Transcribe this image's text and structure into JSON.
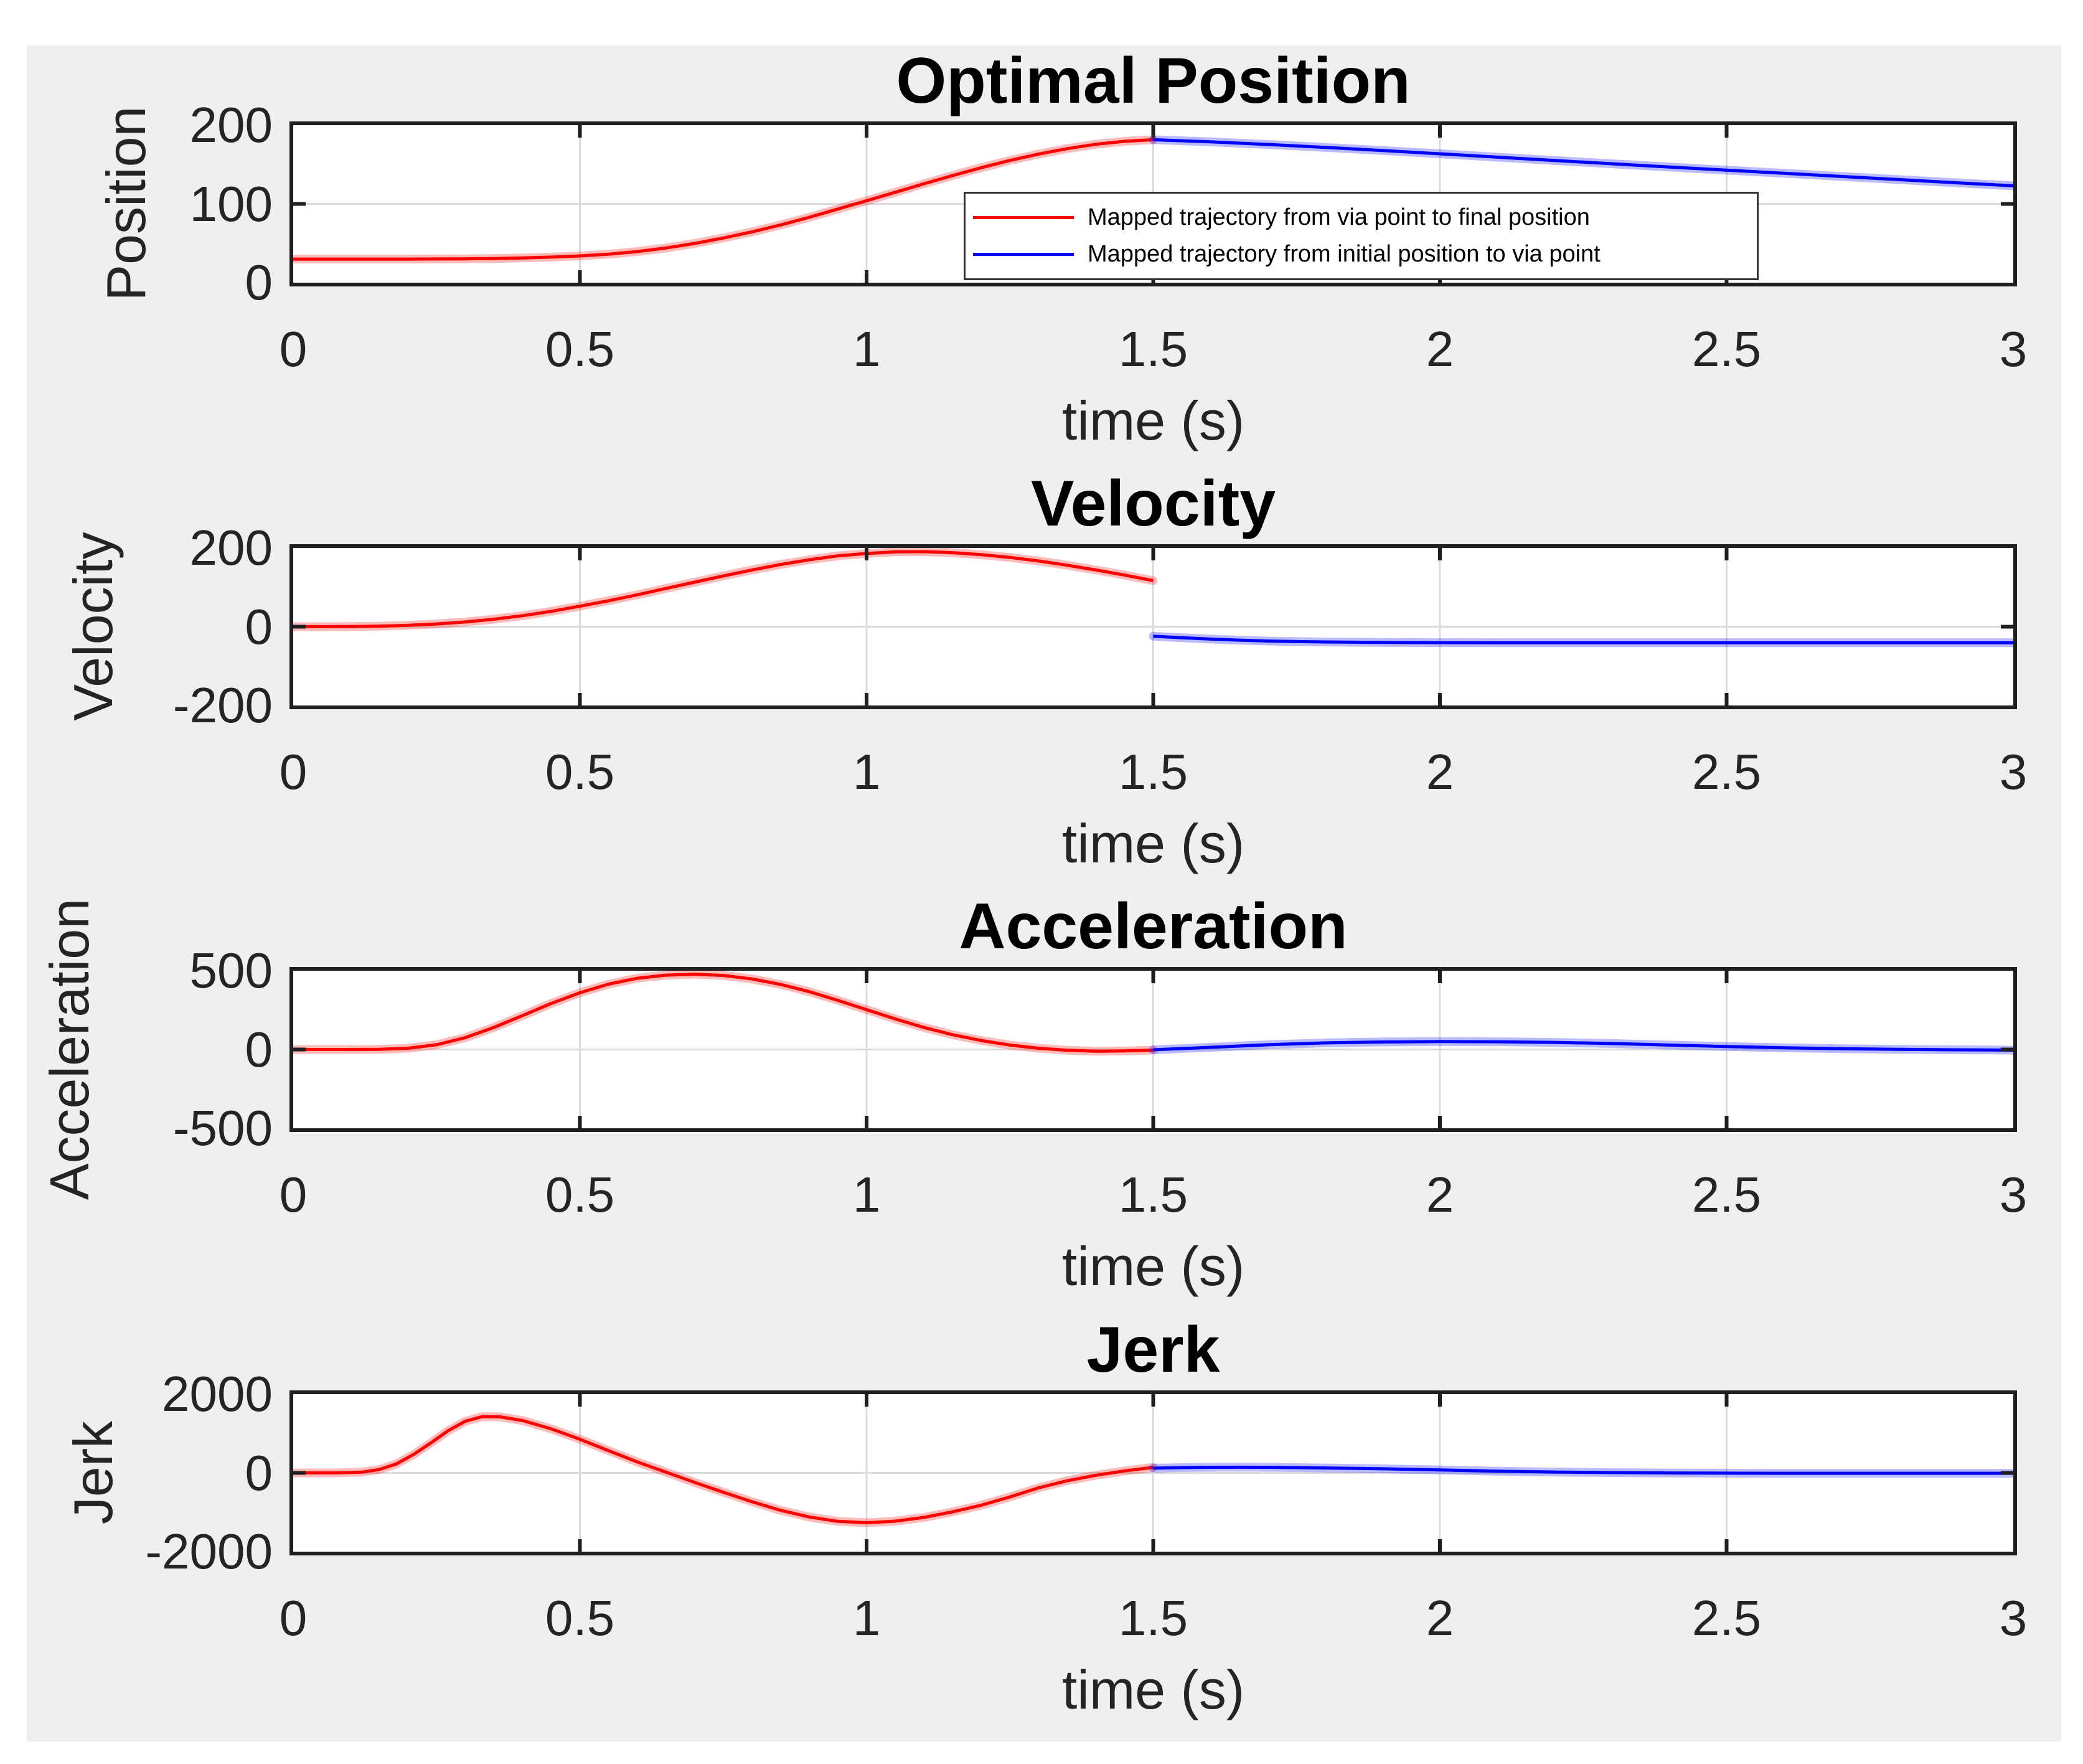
{
  "figure": {
    "background": "#efefef",
    "plot_background": "#ffffff",
    "axis_color": "#1f1f1f",
    "grid_color": "#dcdcdc",
    "text_color": "#242424",
    "series_colors": {
      "red": "#ff0000",
      "blue": "#0000ff"
    }
  },
  "legend": {
    "entries": [
      {
        "label": "Mapped trajectory from via point to final position",
        "color": "red"
      },
      {
        "label": "Mapped trajectory from initial position to via point",
        "color": "blue"
      }
    ]
  },
  "chart_data": [
    {
      "type": "line",
      "title": "Optimal Position",
      "ylabel": "Position",
      "xlabel": "time (s)",
      "xlim": [
        0,
        3
      ],
      "ylim": [
        0,
        200
      ],
      "xticks": [
        0,
        0.5,
        1,
        1.5,
        2,
        2.5,
        3
      ],
      "xtick_labels": [
        "0",
        "0.5",
        "1",
        "1.5",
        "2",
        "2.5",
        "3"
      ],
      "yticks": [
        0,
        100,
        200
      ],
      "ytick_labels": [
        "0",
        "100",
        "200"
      ],
      "grid": true,
      "legend_position": "inside-right",
      "series": [
        {
          "name": "Mapped trajectory from via point to final position",
          "color": "red",
          "x": [
            0,
            0.1,
            0.2,
            0.25,
            0.3,
            0.35,
            0.4,
            0.45,
            0.5,
            0.55,
            0.6,
            0.65,
            0.7,
            0.75,
            0.8,
            0.85,
            0.9,
            0.95,
            1,
            1.05,
            1.1,
            1.15,
            1.2,
            1.25,
            1.3,
            1.35,
            1.4,
            1.45,
            1.5
          ],
          "y": [
            30,
            30,
            30,
            30.1,
            30.3,
            30.7,
            31.4,
            32.5,
            34,
            36.2,
            39.5,
            44,
            49.8,
            56.7,
            64.5,
            73.3,
            83,
            93.5,
            104,
            114.8,
            125.6,
            136,
            146,
            155.2,
            163.3,
            170.2,
            175.7,
            179.5,
            181.5
          ]
        },
        {
          "name": "Mapped trajectory from initial position to via point",
          "color": "blue",
          "x": [
            1.5,
            1.6,
            1.7,
            1.8,
            1.9,
            2,
            2.1,
            2.2,
            2.3,
            2.4,
            2.5,
            2.6,
            2.7,
            2.8,
            2.9,
            3
          ],
          "y": [
            181.5,
            178.8,
            175.5,
            171.8,
            167.8,
            163.6,
            159.4,
            155.2,
            151,
            146.9,
            142.9,
            138.9,
            134.9,
            130.9,
            126.9,
            123
          ]
        }
      ]
    },
    {
      "type": "line",
      "title": "Velocity",
      "ylabel": "Velocity",
      "xlabel": "time (s)",
      "xlim": [
        0,
        3
      ],
      "ylim": [
        -200,
        200
      ],
      "xticks": [
        0,
        0.5,
        1,
        1.5,
        2,
        2.5,
        3
      ],
      "xtick_labels": [
        "0",
        "0.5",
        "1",
        "1.5",
        "2",
        "2.5",
        "3"
      ],
      "yticks": [
        -200,
        0,
        200
      ],
      "ytick_labels": [
        "-200",
        "0",
        "200"
      ],
      "grid": true,
      "series": [
        {
          "name": "Mapped trajectory from via point to final position",
          "color": "red",
          "x": [
            0,
            0.1,
            0.15,
            0.2,
            0.25,
            0.3,
            0.35,
            0.4,
            0.45,
            0.5,
            0.55,
            0.6,
            0.65,
            0.7,
            0.75,
            0.8,
            0.85,
            0.9,
            0.95,
            1,
            1.05,
            1.1,
            1.15,
            1.2,
            1.25,
            1.3,
            1.35,
            1.4,
            1.45,
            1.5
          ],
          "y": [
            0,
            0.5,
            1.5,
            3.5,
            7,
            12,
            19,
            28,
            39,
            52,
            66,
            81,
            97,
            113,
            129,
            144,
            158,
            170,
            180,
            186,
            190,
            190.5,
            188,
            183,
            176,
            167,
            156,
            144,
            131,
            117
          ]
        },
        {
          "name": "Mapped trajectory from initial position to via point",
          "color": "blue",
          "x": [
            1.5,
            1.55,
            1.6,
            1.65,
            1.7,
            1.75,
            1.8,
            1.9,
            2,
            2.1,
            2.2,
            2.4,
            2.6,
            2.8,
            3
          ],
          "y": [
            -24,
            -28,
            -31.5,
            -34.2,
            -36.3,
            -37.8,
            -38.8,
            -40,
            -40.5,
            -40.7,
            -40.8,
            -40.8,
            -40.8,
            -40.8,
            -40.8
          ]
        }
      ]
    },
    {
      "type": "line",
      "title": "Acceleration",
      "ylabel": "Acceleration",
      "xlabel": "time (s)",
      "xlim": [
        0,
        3
      ],
      "ylim": [
        -500,
        500
      ],
      "xticks": [
        0,
        0.5,
        1,
        1.5,
        2,
        2.5,
        3
      ],
      "xtick_labels": [
        "0",
        "0.5",
        "1",
        "1.5",
        "2",
        "2.5",
        "3"
      ],
      "yticks": [
        -500,
        0,
        500
      ],
      "ytick_labels": [
        "-500",
        "0",
        "500"
      ],
      "grid": true,
      "series": [
        {
          "name": "Mapped trajectory from via point to final position",
          "color": "red",
          "x": [
            0,
            0.1,
            0.15,
            0.2,
            0.25,
            0.3,
            0.35,
            0.4,
            0.45,
            0.5,
            0.55,
            0.6,
            0.65,
            0.7,
            0.75,
            0.8,
            0.85,
            0.9,
            0.95,
            1,
            1.05,
            1.1,
            1.15,
            1.2,
            1.25,
            1.3,
            1.35,
            1.4,
            1.45,
            1.5
          ],
          "y": [
            0,
            0,
            1,
            8,
            30,
            75,
            140,
            215,
            292,
            360,
            415,
            452,
            472,
            478,
            470,
            448,
            413,
            367,
            312,
            253,
            194,
            140,
            94,
            57,
            28,
            8,
            -5,
            -11,
            -9,
            -4
          ]
        },
        {
          "name": "Mapped trajectory from initial position to via point",
          "color": "blue",
          "x": [
            1.5,
            1.6,
            1.7,
            1.8,
            1.9,
            2,
            2.1,
            2.2,
            2.3,
            2.4,
            2.5,
            2.6,
            2.7,
            2.8,
            2.9,
            3
          ],
          "y": [
            -2,
            14,
            30,
            42,
            48,
            50,
            49,
            45,
            38,
            28,
            19,
            11,
            5,
            1,
            -2,
            -4
          ]
        }
      ]
    },
    {
      "type": "line",
      "title": "Jerk",
      "ylabel": "Jerk",
      "xlabel": "time (s)",
      "xlim": [
        0,
        3
      ],
      "ylim": [
        -2000,
        2000
      ],
      "xticks": [
        0,
        0.5,
        1,
        1.5,
        2,
        2.5,
        3
      ],
      "xtick_labels": [
        "0",
        "0.5",
        "1",
        "1.5",
        "2",
        "2.5",
        "3"
      ],
      "yticks": [
        -2000,
        0,
        2000
      ],
      "ytick_labels": [
        "-2000",
        "0",
        "2000"
      ],
      "grid": true,
      "series": [
        {
          "name": "Mapped trajectory from via point to final position",
          "color": "red",
          "x": [
            0,
            0.08,
            0.12,
            0.15,
            0.18,
            0.21,
            0.24,
            0.27,
            0.3,
            0.33,
            0.36,
            0.4,
            0.45,
            0.5,
            0.55,
            0.6,
            0.65,
            0.7,
            0.75,
            0.8,
            0.85,
            0.9,
            0.95,
            1,
            1.05,
            1.1,
            1.15,
            1.2,
            1.25,
            1.3,
            1.35,
            1.4,
            1.45,
            1.5
          ],
          "y": [
            0,
            2,
            20,
            85,
            230,
            470,
            760,
            1070,
            1310,
            1430,
            1425,
            1330,
            1120,
            855,
            565,
            280,
            20,
            -240,
            -490,
            -730,
            -950,
            -1120,
            -1230,
            -1265,
            -1225,
            -1130,
            -990,
            -820,
            -610,
            -380,
            -200,
            -60,
            50,
            140
          ]
        },
        {
          "name": "Mapped trajectory from initial position to via point",
          "color": "blue",
          "x": [
            1.5,
            1.55,
            1.6,
            1.65,
            1.7,
            1.75,
            1.8,
            1.9,
            2,
            2.1,
            2.2,
            2.3,
            2.4,
            2.5,
            2.6,
            2.8,
            3
          ],
          "y": [
            120,
            135,
            142,
            144,
            142,
            135,
            125,
            105,
            75,
            45,
            22,
            8,
            -2,
            -7,
            -9,
            -10,
            -10
          ]
        }
      ]
    }
  ]
}
